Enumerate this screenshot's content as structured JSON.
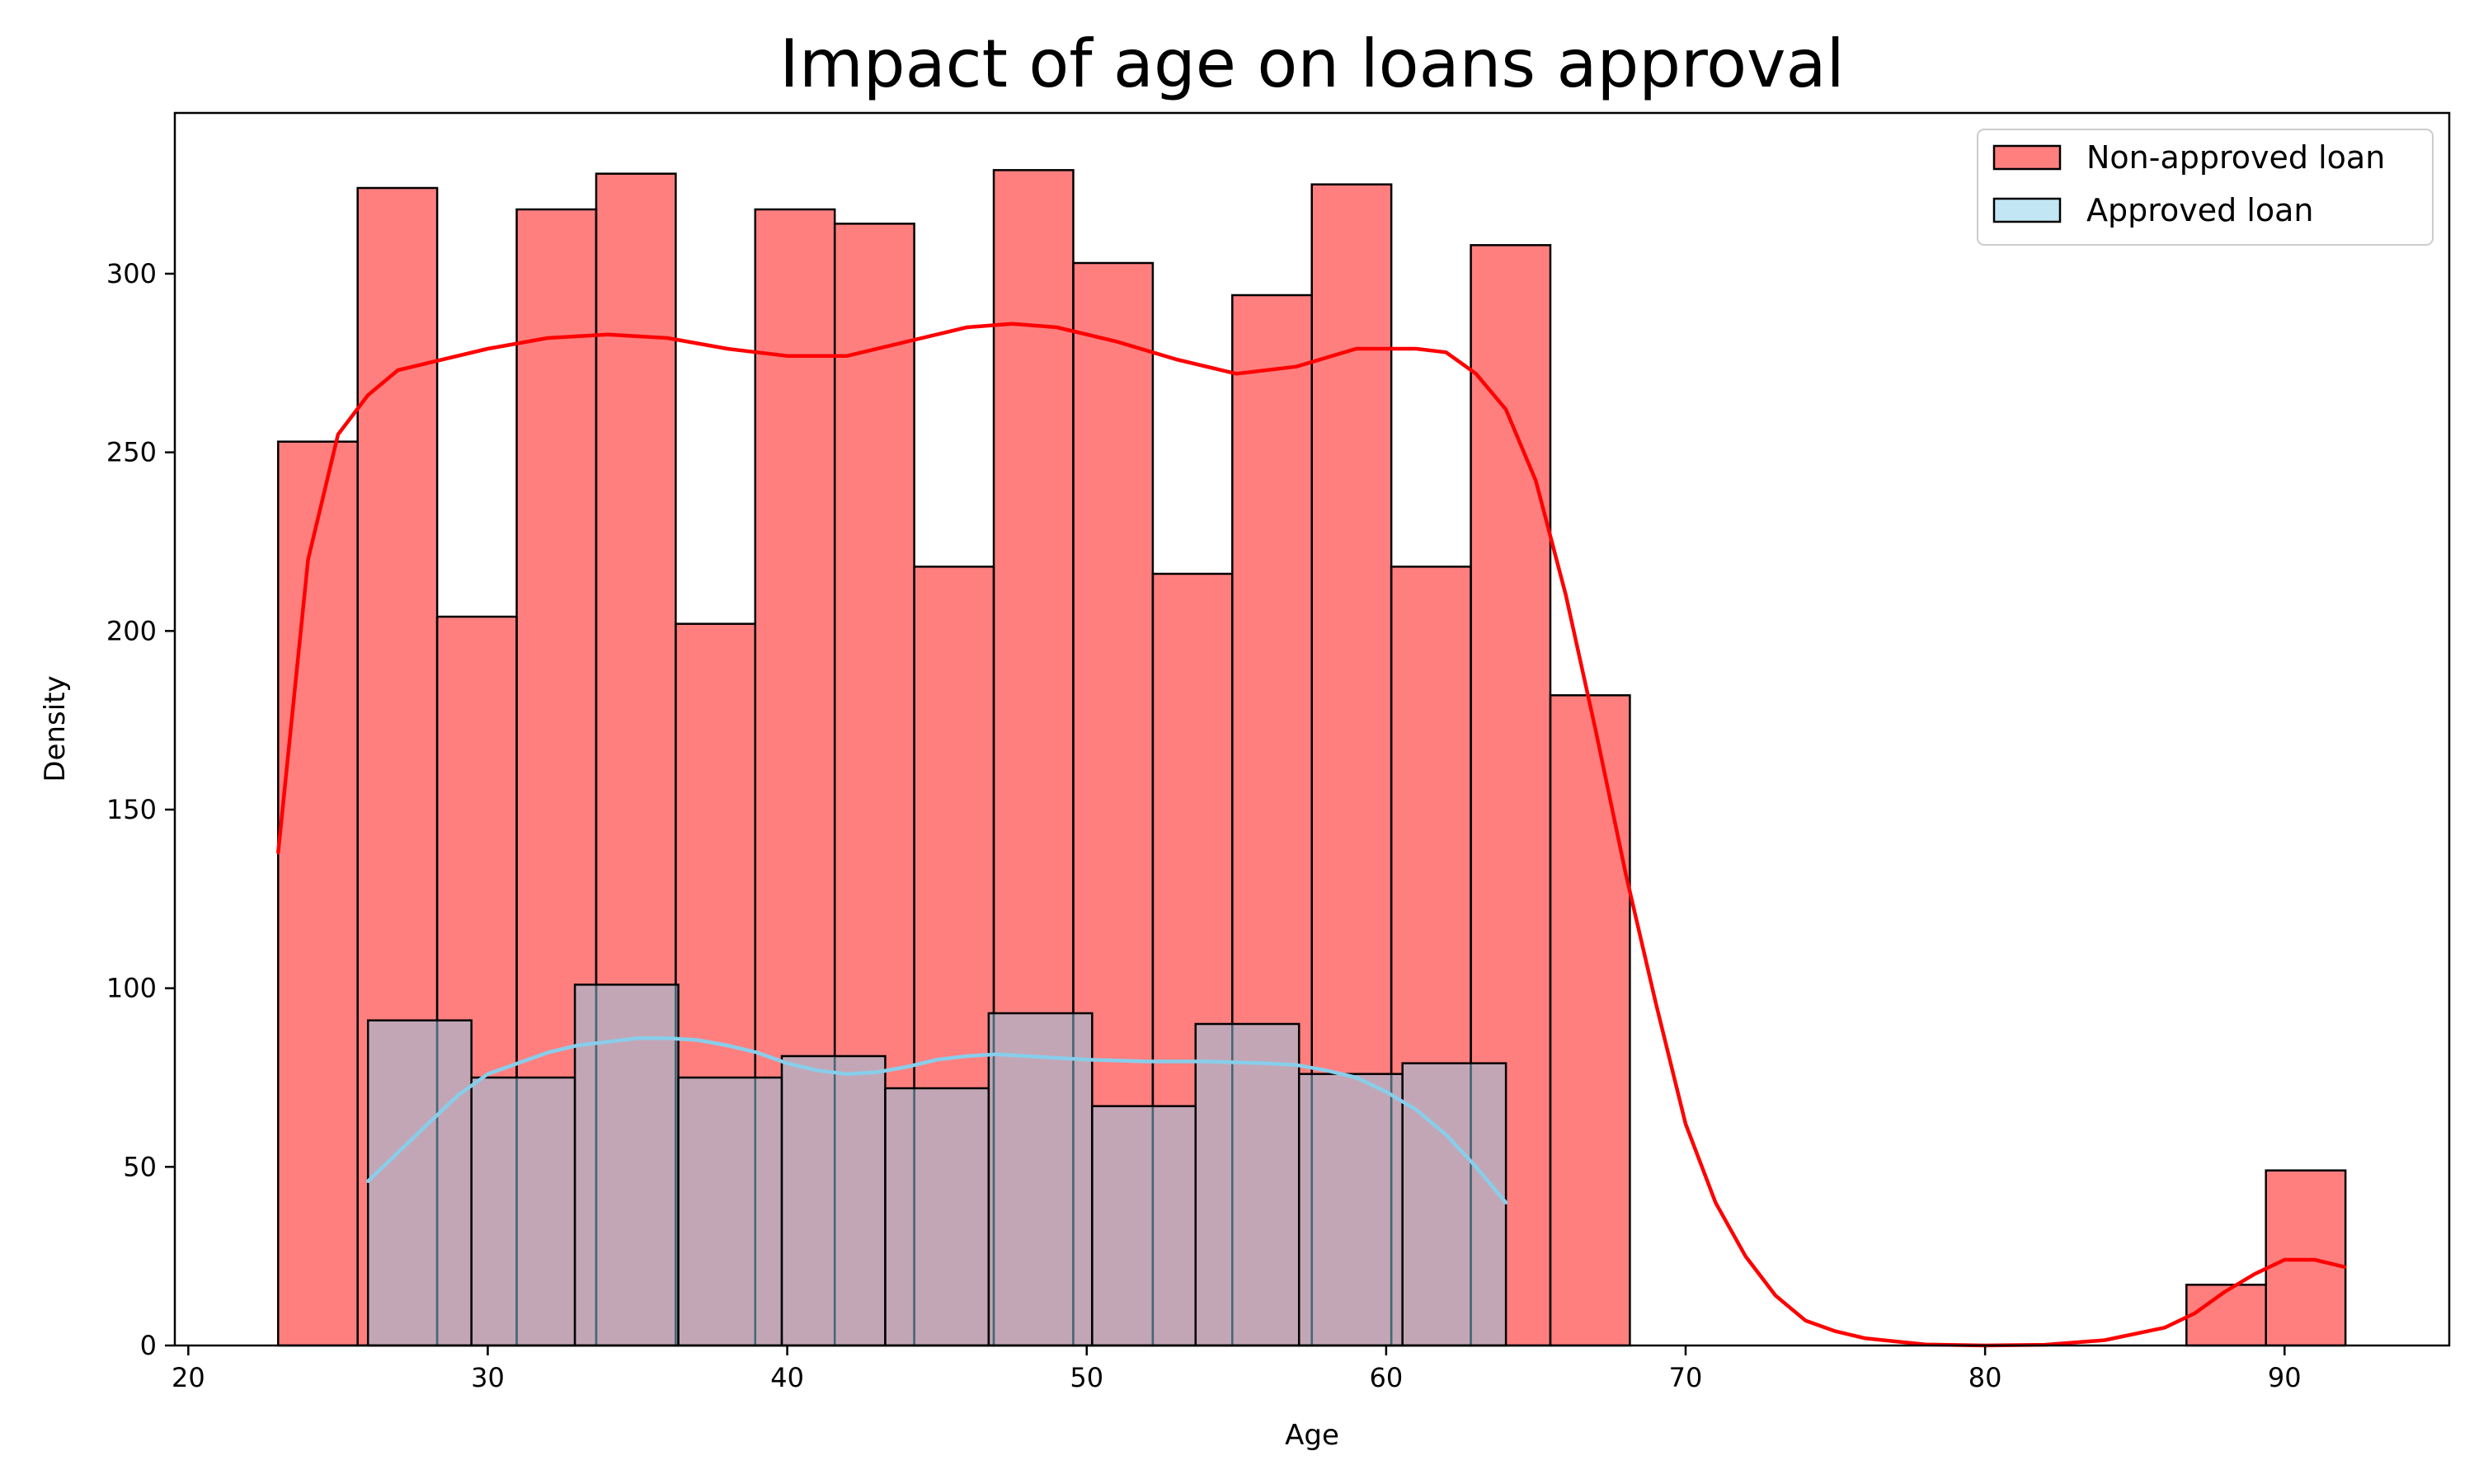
{
  "chart_data": {
    "type": "histogram",
    "title": "Impact of age on loans approval",
    "xlabel": "Age",
    "ylabel": "Density",
    "xlim": [
      19.55,
      95.5
    ],
    "ylim": [
      0,
      345
    ],
    "xticks": [
      20,
      30,
      40,
      50,
      60,
      70,
      80,
      90
    ],
    "yticks": [
      0,
      50,
      100,
      150,
      200,
      250,
      300
    ],
    "legend_position": "top-right",
    "series": [
      {
        "name": "Non-approved loan",
        "color": "#ff0000",
        "fill_opacity": 0.5,
        "bin_width": 2.6552,
        "bins": [
          {
            "x0": 23.0,
            "value": 253
          },
          {
            "x0": 25.655,
            "value": 324
          },
          {
            "x0": 28.31,
            "value": 204
          },
          {
            "x0": 30.966,
            "value": 318
          },
          {
            "x0": 33.621,
            "value": 328
          },
          {
            "x0": 36.276,
            "value": 202
          },
          {
            "x0": 38.931,
            "value": 318
          },
          {
            "x0": 41.586,
            "value": 314
          },
          {
            "x0": 44.241,
            "value": 218
          },
          {
            "x0": 46.897,
            "value": 329
          },
          {
            "x0": 49.552,
            "value": 303
          },
          {
            "x0": 52.207,
            "value": 216
          },
          {
            "x0": 54.862,
            "value": 294
          },
          {
            "x0": 57.517,
            "value": 325
          },
          {
            "x0": 60.172,
            "value": 218
          },
          {
            "x0": 62.828,
            "value": 308
          },
          {
            "x0": 65.483,
            "value": 182
          },
          {
            "x0": 86.724,
            "value": 17
          },
          {
            "x0": 89.379,
            "value": 49
          }
        ],
        "kde": [
          [
            23,
            138
          ],
          [
            24,
            220
          ],
          [
            25,
            255
          ],
          [
            26,
            266
          ],
          [
            27,
            273
          ],
          [
            28,
            275
          ],
          [
            30,
            279
          ],
          [
            32,
            282
          ],
          [
            34,
            283
          ],
          [
            36,
            282
          ],
          [
            38,
            279
          ],
          [
            40,
            277
          ],
          [
            42,
            277
          ],
          [
            44,
            281
          ],
          [
            46,
            285
          ],
          [
            47.5,
            286
          ],
          [
            49,
            285
          ],
          [
            51,
            281
          ],
          [
            53,
            276
          ],
          [
            55,
            272
          ],
          [
            57,
            274
          ],
          [
            59,
            279
          ],
          [
            61,
            279
          ],
          [
            62,
            278
          ],
          [
            63,
            272
          ],
          [
            64,
            262
          ],
          [
            65,
            242
          ],
          [
            66,
            210
          ],
          [
            67,
            172
          ],
          [
            68,
            132
          ],
          [
            69,
            96
          ],
          [
            70,
            62
          ],
          [
            71,
            40
          ],
          [
            72,
            25
          ],
          [
            73,
            14
          ],
          [
            74,
            7
          ],
          [
            75,
            4
          ],
          [
            76,
            2
          ],
          [
            78,
            0.3
          ],
          [
            80,
            0
          ],
          [
            82,
            0.2
          ],
          [
            84,
            1.5
          ],
          [
            86,
            5
          ],
          [
            87,
            9
          ],
          [
            88,
            15
          ],
          [
            89,
            20
          ],
          [
            90,
            24
          ],
          [
            91,
            24
          ],
          [
            92,
            22
          ]
        ]
      },
      {
        "name": "Approved loan",
        "color": "#87ceeb",
        "fill_opacity": 0.5,
        "bin_width": 3.4545,
        "bins": [
          {
            "x0": 26.0,
            "value": 91
          },
          {
            "x0": 29.455,
            "value": 75
          },
          {
            "x0": 32.909,
            "value": 101
          },
          {
            "x0": 36.364,
            "value": 75
          },
          {
            "x0": 39.818,
            "value": 81
          },
          {
            "x0": 43.273,
            "value": 72
          },
          {
            "x0": 46.727,
            "value": 93
          },
          {
            "x0": 50.182,
            "value": 67
          },
          {
            "x0": 53.636,
            "value": 90
          },
          {
            "x0": 57.091,
            "value": 76
          },
          {
            "x0": 60.545,
            "value": 79
          }
        ],
        "kde": [
          [
            26,
            46
          ],
          [
            27,
            54
          ],
          [
            28,
            62
          ],
          [
            29,
            70
          ],
          [
            30,
            76
          ],
          [
            31,
            79
          ],
          [
            32,
            82
          ],
          [
            33,
            84
          ],
          [
            34,
            85
          ],
          [
            35,
            86
          ],
          [
            36,
            86
          ],
          [
            37,
            85.5
          ],
          [
            38,
            84
          ],
          [
            39,
            82
          ],
          [
            40,
            79
          ],
          [
            41,
            77
          ],
          [
            42,
            76
          ],
          [
            43,
            76.5
          ],
          [
            44,
            78
          ],
          [
            45,
            80
          ],
          [
            46,
            81
          ],
          [
            47,
            81.5
          ],
          [
            48,
            81
          ],
          [
            50,
            80
          ],
          [
            52,
            79.5
          ],
          [
            54,
            79.5
          ],
          [
            56,
            79
          ],
          [
            57,
            78.5
          ],
          [
            58,
            77
          ],
          [
            59,
            75
          ],
          [
            60,
            71
          ],
          [
            61,
            66
          ],
          [
            62,
            59
          ],
          [
            63,
            50
          ],
          [
            64,
            40
          ]
        ]
      }
    ]
  }
}
